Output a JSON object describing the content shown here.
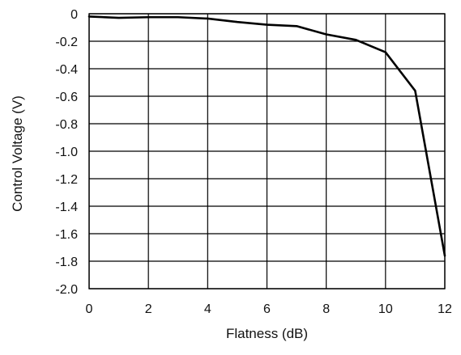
{
  "chart_data": {
    "type": "line",
    "title": "",
    "xlabel": "Flatness (dB)",
    "ylabel": "Control Voltage (V)",
    "xlim": [
      0,
      12
    ],
    "ylim": [
      -2.0,
      0
    ],
    "xticks": [
      0,
      2,
      4,
      6,
      8,
      10,
      12
    ],
    "xtick_labels": [
      "0",
      "2",
      "4",
      "6",
      "8",
      "10",
      "12"
    ],
    "yticks": [
      0,
      -0.2,
      -0.4,
      -0.6,
      -0.8,
      -1.0,
      -1.2,
      -1.4,
      -1.6,
      -1.8,
      -2.0
    ],
    "ytick_labels": [
      "0",
      "-0.2",
      "-0.4",
      "-0.6",
      "-0.8",
      "-1.0",
      "-1.2",
      "-1.4",
      "-1.6",
      "-1.8",
      "-2.0"
    ],
    "grid": true,
    "legend": "none",
    "series": [
      {
        "color": "#000000",
        "x": [
          0,
          1,
          2,
          3,
          4,
          5,
          6,
          7,
          8,
          9,
          10,
          11,
          12
        ],
        "y": [
          -0.02,
          -0.03,
          -0.025,
          -0.025,
          -0.035,
          -0.06,
          -0.08,
          -0.09,
          -0.15,
          -0.19,
          -0.28,
          -0.56,
          -1.76
        ]
      }
    ]
  }
}
